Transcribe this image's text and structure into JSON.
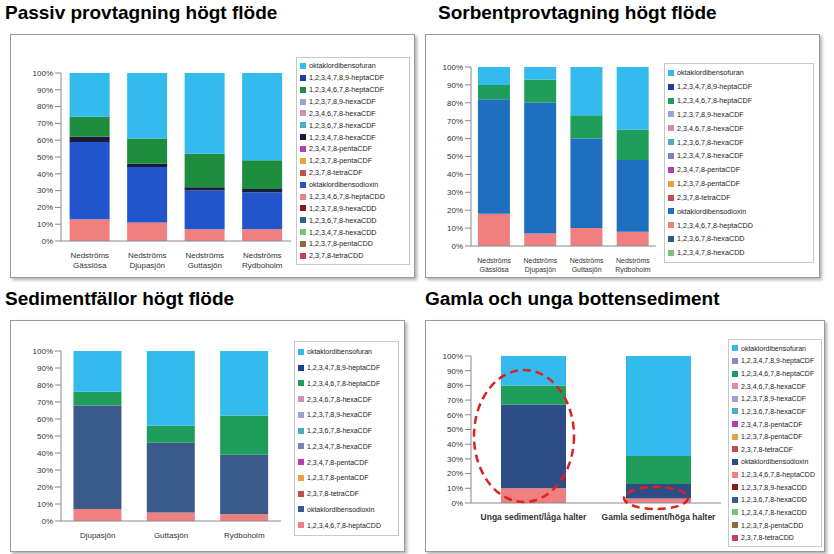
{
  "chart_data": [
    {
      "type": "bar",
      "title": "Passiv provtagning högt flöde",
      "stacked": true,
      "grid": false,
      "legend": "right",
      "categories": [
        "Nedströms Gässlösa",
        "Nedströms Djupasjön",
        "Nedströms Guttasjön",
        "Nedströms Rydboholm"
      ],
      "ylim": [
        0,
        100
      ],
      "yticks": [
        {
          "value": 0,
          "label": "0%"
        },
        {
          "value": 10,
          "label": "10%"
        },
        {
          "value": 20,
          "label": "20%"
        },
        {
          "value": 30,
          "label": "30%"
        },
        {
          "value": 40,
          "label": "40%"
        },
        {
          "value": 50,
          "label": "50%"
        },
        {
          "value": 60,
          "label": "60%"
        },
        {
          "value": 70,
          "label": "70%"
        },
        {
          "value": 80,
          "label": "80%"
        },
        {
          "value": 90,
          "label": "90%"
        },
        {
          "value": 100,
          "label": "100%"
        }
      ],
      "series": [
        {
          "name": "oktaklordibensofuran",
          "color": "#33BBEE",
          "values": [
            26,
            39,
            48,
            52
          ]
        },
        {
          "name": "1,2,3,4,7,8,9-heptaCDF",
          "color": "#1F3D99",
          "values": [
            0,
            0,
            0,
            0
          ]
        },
        {
          "name": "1,2,3,4,6,7,8-heptaCDF",
          "color": "#1E8E3E",
          "values": [
            12,
            15,
            20,
            17
          ]
        },
        {
          "name": "1,2,3,7,8,9-hexaCDF",
          "color": "#9DA0D8",
          "values": [
            0,
            0,
            0,
            0
          ]
        },
        {
          "name": "2,3,4,6,7,8-hexaCDF",
          "color": "#D98CB3",
          "values": [
            0,
            0,
            0,
            0
          ]
        },
        {
          "name": "1,2,3,6,7,8-hexaCDF",
          "color": "#4BACC6",
          "values": [
            0,
            0,
            0,
            0
          ]
        },
        {
          "name": "1,2,3,4,7,8-hexaCDF",
          "color": "#1A1A3A",
          "values": [
            3,
            2,
            2,
            2
          ]
        },
        {
          "name": "2,3,4,7,8-pentaCDF",
          "color": "#B040B0",
          "values": [
            0,
            0,
            0,
            0
          ]
        },
        {
          "name": "1,2,3,7,8-pentaCDF",
          "color": "#E8A040",
          "values": [
            0,
            0,
            0,
            0
          ]
        },
        {
          "name": "2,3,7,8-tetraCDF",
          "color": "#C0504D",
          "values": [
            0,
            0,
            0,
            0
          ]
        },
        {
          "name": "oktaklordibensodioxin",
          "color": "#2255CC",
          "values": [
            46,
            33,
            23,
            22
          ]
        },
        {
          "name": "1,2,3,4,6,7,8-heptaCDD",
          "color": "#F08080",
          "values": [
            13,
            11,
            7,
            7
          ]
        },
        {
          "name": "1,2,3,7,8,9-hexaCDD",
          "color": "#8B1A1A",
          "values": [
            0,
            0,
            0,
            0
          ]
        },
        {
          "name": "1,2,3,6,7,8-hexaCDD",
          "color": "#2E5F8A",
          "values": [
            0,
            0,
            0,
            0
          ]
        },
        {
          "name": "1,2,3,4,7,8-hexaCDD",
          "color": "#7FBF7F",
          "values": [
            0,
            0,
            0,
            0
          ]
        },
        {
          "name": "1,2,3,7,8-pentaCDD",
          "color": "#8B6B3A",
          "values": [
            0,
            0,
            0,
            0
          ]
        },
        {
          "name": "2,3,7,8-tetraCDD",
          "color": "#C04068",
          "values": [
            0,
            0,
            0,
            0
          ]
        }
      ]
    },
    {
      "type": "bar",
      "title": "Sorbentprovtagning högt flöde",
      "stacked": true,
      "grid": false,
      "legend": "right",
      "categories": [
        "Nedströms Gässlösa",
        "Nedströms Djupasjön",
        "Nedströms Guttasjön",
        "Nedströms Rydboholm"
      ],
      "ylim": [
        0,
        100
      ],
      "yticks": [
        {
          "value": 0,
          "label": "0%"
        },
        {
          "value": 10,
          "label": "10%"
        },
        {
          "value": 20,
          "label": "20%"
        },
        {
          "value": 30,
          "label": "30%"
        },
        {
          "value": 40,
          "label": "40%"
        },
        {
          "value": 50,
          "label": "50%"
        },
        {
          "value": 60,
          "label": "60%"
        },
        {
          "value": 70,
          "label": "70%"
        },
        {
          "value": 80,
          "label": "80%"
        },
        {
          "value": 90,
          "label": "90%"
        },
        {
          "value": 100,
          "label": "100%"
        }
      ],
      "series": [
        {
          "name": "oktaklordibensofuran",
          "color": "#33BBEE",
          "values": [
            10,
            7,
            27,
            35
          ]
        },
        {
          "name": "1,2,3,4,7,8,9-heptaCDF",
          "color": "#1F3D99",
          "values": [
            0,
            0,
            0,
            0
          ]
        },
        {
          "name": "1,2,3,4,6,7,8-heptaCDF",
          "color": "#1E9E5A",
          "values": [
            8,
            13,
            13,
            17
          ]
        },
        {
          "name": "1,2,3,7,8,9-hexaCDF",
          "color": "#9DA0D8",
          "values": [
            0,
            0,
            0,
            0
          ]
        },
        {
          "name": "2,3,4,6,7,8-hexaCDF",
          "color": "#D98CB3",
          "values": [
            0,
            0,
            0,
            0
          ]
        },
        {
          "name": "1,2,3,6,7,8-hexaCDF",
          "color": "#4BACC6",
          "values": [
            0,
            0,
            0,
            0
          ]
        },
        {
          "name": "1,2,3,4,7,8-hexaCDF",
          "color": "#7F7FBF",
          "values": [
            0,
            0,
            0,
            0
          ]
        },
        {
          "name": "2,3,4,7,8-pentaCDF",
          "color": "#B040B0",
          "values": [
            0,
            0,
            0,
            0
          ]
        },
        {
          "name": "1,2,3,7,8-pentaCDF",
          "color": "#E8A040",
          "values": [
            0,
            0,
            0,
            0
          ]
        },
        {
          "name": "2,3,7,8-tetraCDF",
          "color": "#C0504D",
          "values": [
            0,
            0,
            0,
            0
          ]
        },
        {
          "name": "oktaklordibensodioxin",
          "color": "#1F6FC0",
          "values": [
            64,
            73,
            50,
            40
          ]
        },
        {
          "name": "1,2,3,4,6,7,8-heptaCDD",
          "color": "#F08080",
          "values": [
            18,
            7,
            10,
            8
          ]
        },
        {
          "name": "1,2,3,6,7,8-hexaCDD",
          "color": "#2E5F8A",
          "values": [
            0,
            0,
            0,
            0
          ]
        },
        {
          "name": "1,2,3,4,7,8-hexaCDD",
          "color": "#7FBF7F",
          "values": [
            0,
            0,
            0,
            0
          ]
        }
      ]
    },
    {
      "type": "bar",
      "title": "Sedimentfällor högt flöde",
      "stacked": true,
      "grid": false,
      "legend": "right",
      "categories": [
        "Djupasjön",
        "Guttasjön",
        "Rydboholm"
      ],
      "ylim": [
        0,
        100
      ],
      "yticks": [
        {
          "value": 0,
          "label": "0%"
        },
        {
          "value": 10,
          "label": "10%"
        },
        {
          "value": 20,
          "label": "20%"
        },
        {
          "value": 30,
          "label": "30%"
        },
        {
          "value": 40,
          "label": "40%"
        },
        {
          "value": 50,
          "label": "50%"
        },
        {
          "value": 60,
          "label": "60%"
        },
        {
          "value": 70,
          "label": "70%"
        },
        {
          "value": 80,
          "label": "80%"
        },
        {
          "value": 90,
          "label": "90%"
        },
        {
          "value": 100,
          "label": "100%"
        }
      ],
      "series": [
        {
          "name": "oktaklordibensofuran",
          "color": "#33BBEE",
          "values": [
            24,
            44,
            38
          ]
        },
        {
          "name": "1,2,3,4,7,8,9-heptaCDF",
          "color": "#1F3D99",
          "values": [
            0,
            0,
            0
          ]
        },
        {
          "name": "1,2,3,4,6,7,8-heptaCDF",
          "color": "#1E9E5A",
          "values": [
            8,
            10,
            23
          ]
        },
        {
          "name": "2,3,4,6,7,8-hexaCDF",
          "color": "#D98CB3",
          "values": [
            0,
            0,
            0
          ]
        },
        {
          "name": "1,2,3,7,8,9-hexaCDF",
          "color": "#9DA0D8",
          "values": [
            0,
            0,
            0
          ]
        },
        {
          "name": "1,2,3,6,7,8-hexaCDF",
          "color": "#4BACC6",
          "values": [
            0,
            0,
            0
          ]
        },
        {
          "name": "1,2,3,4,7,8-hexaCDF",
          "color": "#7F7FBF",
          "values": [
            0,
            0,
            0
          ]
        },
        {
          "name": "2,3,4,7,8-pentaCDF",
          "color": "#B040B0",
          "values": [
            0,
            0,
            0
          ]
        },
        {
          "name": "1,2,3,7,8-pentaCDF",
          "color": "#E8A040",
          "values": [
            0,
            0,
            0
          ]
        },
        {
          "name": "2,3,7,8-tetraCDF",
          "color": "#C0504D",
          "values": [
            0,
            0,
            0
          ]
        },
        {
          "name": "oktaklordibensodioxin",
          "color": "#3A5A8C",
          "values": [
            61,
            41,
            35
          ]
        },
        {
          "name": "1,2,3,4,6,7,8-heptaCDD",
          "color": "#F08080",
          "values": [
            7,
            5,
            4
          ]
        }
      ]
    },
    {
      "type": "bar",
      "title": "Gamla och unga bottensediment",
      "stacked": true,
      "grid": false,
      "legend": "right",
      "categories": [
        "Unga sediment/låga halter",
        "Gamla sediment/höga halter"
      ],
      "ylim": [
        0,
        100
      ],
      "yticks": [
        {
          "value": 0,
          "label": "0%"
        },
        {
          "value": 10,
          "label": "10%"
        },
        {
          "value": 20,
          "label": "20%"
        },
        {
          "value": 30,
          "label": "30%"
        },
        {
          "value": 40,
          "label": "40%"
        },
        {
          "value": 50,
          "label": "50%"
        },
        {
          "value": 60,
          "label": "60%"
        },
        {
          "value": 70,
          "label": "70%"
        },
        {
          "value": 80,
          "label": "80%"
        },
        {
          "value": 90,
          "label": "90%"
        },
        {
          "value": 100,
          "label": "100%"
        }
      ],
      "series": [
        {
          "name": "oktaklordibensofuran",
          "color": "#33BBEE",
          "values": [
            20,
            68
          ]
        },
        {
          "name": "1,2,3,4,7,8,9-heptaCDF",
          "color": "#9D80C0",
          "values": [
            0,
            0
          ]
        },
        {
          "name": "1,2,3,4,6,7,8-heptaCDF",
          "color": "#1E9E5A",
          "values": [
            13,
            19
          ]
        },
        {
          "name": "2,3,4,6,7,8-hexaCDF",
          "color": "#D98CB3",
          "values": [
            0,
            0
          ]
        },
        {
          "name": "1,2,3,7,8,9-hexaCDF",
          "color": "#9DA0D8",
          "values": [
            0,
            0
          ]
        },
        {
          "name": "1,2,3,6,7,8-hexaCDF",
          "color": "#4BACC6",
          "values": [
            0,
            0
          ]
        },
        {
          "name": "2,3,4,7,8-pentaCDF",
          "color": "#B040B0",
          "values": [
            0,
            0
          ]
        },
        {
          "name": "1,2,3,7,8-pentaCDF",
          "color": "#E8A040",
          "values": [
            0,
            0
          ]
        },
        {
          "name": "2,3,7,8-tetraCDF",
          "color": "#C0504D",
          "values": [
            0,
            0
          ]
        },
        {
          "name": "oktaklordibensodioxin",
          "color": "#2E4D87",
          "values": [
            57,
            10
          ]
        },
        {
          "name": "1,2,3,4,6,7,8-heptaCDD",
          "color": "#F08080",
          "values": [
            10,
            3
          ]
        },
        {
          "name": "1,2,3,7,8,9-hexaCDD",
          "color": "#8B1A1A",
          "values": [
            0,
            0
          ]
        },
        {
          "name": "1,2,3,6,7,8-hexaCDD",
          "color": "#2E5F8A",
          "values": [
            0,
            0
          ]
        },
        {
          "name": "1,2,3,4,7,8-hexaCDD",
          "color": "#7FBF7F",
          "values": [
            0,
            0
          ]
        },
        {
          "name": "1,2,3,7,8-pentaCDD",
          "color": "#8B6B3A",
          "values": [
            0,
            0
          ]
        },
        {
          "name": "2,3,7,8-tetraCDD",
          "color": "#C04068",
          "values": [
            0,
            0
          ]
        }
      ]
    }
  ]
}
